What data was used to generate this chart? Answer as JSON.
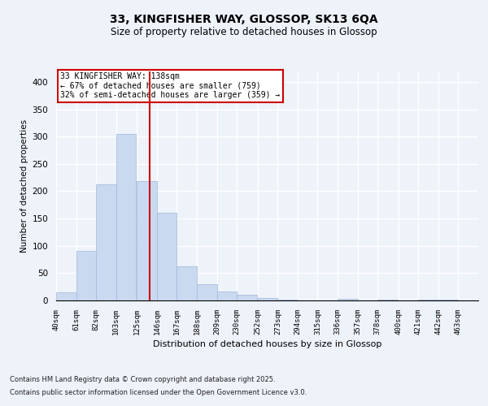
{
  "title_line1": "33, KINGFISHER WAY, GLOSSOP, SK13 6QA",
  "title_line2": "Size of property relative to detached houses in Glossop",
  "xlabel": "Distribution of detached houses by size in Glossop",
  "ylabel": "Number of detached properties",
  "footer_line1": "Contains HM Land Registry data © Crown copyright and database right 2025.",
  "footer_line2": "Contains public sector information licensed under the Open Government Licence v3.0.",
  "annotation_line1": "33 KINGFISHER WAY: 138sqm",
  "annotation_line2": "← 67% of detached houses are smaller (759)",
  "annotation_line3": "32% of semi-detached houses are larger (359) →",
  "bar_left_edges": [
    40,
    61,
    82,
    103,
    125,
    146,
    167,
    188,
    209,
    230,
    252,
    273,
    294,
    315,
    336,
    357,
    378,
    400,
    421,
    442
  ],
  "bar_heights": [
    15,
    90,
    212,
    305,
    218,
    160,
    63,
    30,
    16,
    10,
    5,
    2,
    0,
    0,
    3,
    0,
    2,
    0,
    2,
    1
  ],
  "bar_widths": [
    21,
    21,
    21,
    21,
    21,
    21,
    21,
    21,
    21,
    21,
    21,
    21,
    21,
    21,
    21,
    21,
    21,
    21,
    21,
    21
  ],
  "tick_labels": [
    "40sqm",
    "61sqm",
    "82sqm",
    "103sqm",
    "125sqm",
    "146sqm",
    "167sqm",
    "188sqm",
    "209sqm",
    "230sqm",
    "252sqm",
    "273sqm",
    "294sqm",
    "315sqm",
    "336sqm",
    "357sqm",
    "378sqm",
    "400sqm",
    "421sqm",
    "442sqm",
    "463sqm"
  ],
  "bar_color": "#c9d9f0",
  "bar_edge_color": "#a0b8d8",
  "redline_x": 138,
  "ylim": [
    0,
    420
  ],
  "yticks": [
    0,
    50,
    100,
    150,
    200,
    250,
    300,
    350,
    400
  ],
  "bg_color": "#eef2f9",
  "plot_bg_color": "#eef2f9",
  "grid_color": "#ffffff",
  "annotation_box_color": "#ffffff",
  "annotation_border_color": "#cc0000",
  "redline_color": "#cc0000"
}
